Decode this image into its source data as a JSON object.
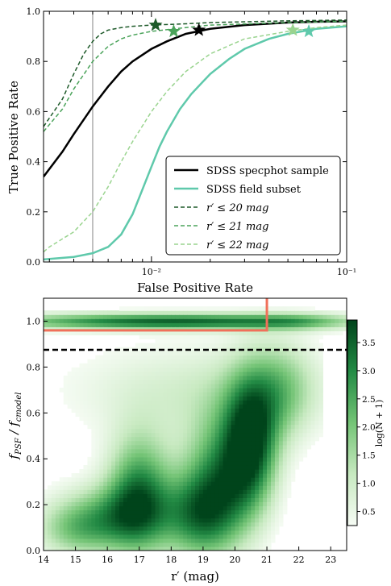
{
  "chart_data": [
    {
      "type": "line",
      "xlabel": "False Positive Rate",
      "ylabel": "True Positive Rate",
      "xscale": "log",
      "xlim": [
        0.0028,
        0.1
      ],
      "ylim": [
        0.0,
        1.0
      ],
      "x_tick_labels": [
        "10⁻²",
        "10⁻¹"
      ],
      "x_ticks": [
        0.01,
        0.1
      ],
      "y_tick_labels": [
        "0.0",
        "0.2",
        "0.4",
        "0.6",
        "0.8",
        "1.0"
      ],
      "y_ticks": [
        0.0,
        0.2,
        0.4,
        0.6,
        0.8,
        1.0
      ],
      "vline_x": 0.005,
      "legend_position": "lower-right",
      "series": [
        {
          "name": "SDSS specphot sample",
          "color": "#000000",
          "style": "solid",
          "x": [
            0.0028,
            0.0035,
            0.004,
            0.005,
            0.006,
            0.007,
            0.008,
            0.01,
            0.012,
            0.015,
            0.02,
            0.03,
            0.05,
            0.07,
            0.1
          ],
          "y": [
            0.34,
            0.44,
            0.51,
            0.62,
            0.7,
            0.76,
            0.8,
            0.85,
            0.88,
            0.91,
            0.93,
            0.945,
            0.955,
            0.958,
            0.96
          ],
          "marker": [
            0.0175,
            0.925
          ]
        },
        {
          "name": "SDSS field subset",
          "color": "#5fc9ab",
          "style": "solid",
          "x": [
            0.0028,
            0.003,
            0.004,
            0.005,
            0.006,
            0.007,
            0.008,
            0.009,
            0.01,
            0.011,
            0.012,
            0.014,
            0.016,
            0.02,
            0.025,
            0.03,
            0.04,
            0.05,
            0.07,
            0.1
          ],
          "y": [
            0.01,
            0.012,
            0.02,
            0.035,
            0.06,
            0.11,
            0.19,
            0.29,
            0.38,
            0.46,
            0.52,
            0.61,
            0.67,
            0.75,
            0.81,
            0.85,
            0.89,
            0.91,
            0.93,
            0.94
          ],
          "marker": [
            0.064,
            0.92
          ]
        },
        {
          "name": "r′ ≤ 20 mag",
          "color": "#1e5a2a",
          "style": "dashed",
          "x": [
            0.0028,
            0.0035,
            0.004,
            0.0045,
            0.005,
            0.0055,
            0.006,
            0.007,
            0.008,
            0.01,
            0.015,
            0.02,
            0.05,
            0.1
          ],
          "y": [
            0.54,
            0.65,
            0.75,
            0.83,
            0.88,
            0.91,
            0.925,
            0.935,
            0.94,
            0.945,
            0.95,
            0.955,
            0.962,
            0.965
          ],
          "marker": [
            0.0105,
            0.945
          ]
        },
        {
          "name": "r′ ≤ 21 mag",
          "color": "#4aa35a",
          "style": "dashed",
          "x": [
            0.0028,
            0.0035,
            0.004,
            0.005,
            0.006,
            0.007,
            0.008,
            0.01,
            0.015,
            0.02,
            0.05,
            0.1
          ],
          "y": [
            0.52,
            0.61,
            0.69,
            0.8,
            0.86,
            0.89,
            0.905,
            0.92,
            0.935,
            0.945,
            0.955,
            0.96
          ],
          "marker": [
            0.013,
            0.92
          ]
        },
        {
          "name": "r′ ≤ 22 mag",
          "color": "#9ad48f",
          "style": "dashed",
          "x": [
            0.0028,
            0.003,
            0.004,
            0.005,
            0.006,
            0.007,
            0.008,
            0.01,
            0.012,
            0.015,
            0.02,
            0.03,
            0.05,
            0.07,
            0.1
          ],
          "y": [
            0.04,
            0.06,
            0.12,
            0.2,
            0.3,
            0.4,
            0.48,
            0.6,
            0.68,
            0.76,
            0.83,
            0.89,
            0.92,
            0.935,
            0.945
          ],
          "marker": [
            0.053,
            0.925
          ]
        }
      ]
    },
    {
      "type": "heatmap",
      "xlabel": "r′ (mag)",
      "ylabel": "f_PSF / f_cmodel",
      "xlim": [
        14.0,
        23.5
      ],
      "ylim": [
        0.0,
        1.1
      ],
      "x_ticks": [
        14,
        15,
        16,
        17,
        18,
        19,
        20,
        21,
        22,
        23
      ],
      "x_tick_labels": [
        "14",
        "15",
        "16",
        "17",
        "18",
        "19",
        "20",
        "21",
        "22",
        "23"
      ],
      "y_ticks": [
        0.0,
        0.2,
        0.4,
        0.6,
        0.8,
        1.0
      ],
      "y_tick_labels": [
        "0.0",
        "0.2",
        "0.4",
        "0.6",
        "0.8",
        "1.0"
      ],
      "colorbar_label": "log(N + 1)",
      "colorbar_range": [
        0.25,
        3.9
      ],
      "colorbar_ticks": [
        0.5,
        1.0,
        1.5,
        2.0,
        2.5,
        3.0,
        3.5
      ],
      "colorbar_tick_labels": [
        "0.5",
        "1.0",
        "1.5",
        "2.0",
        "2.5",
        "3.0",
        "3.5"
      ],
      "dashed_hline_y": 0.875,
      "cut_line": {
        "color": "#f0705a",
        "points": [
          [
            14.0,
            0.96
          ],
          [
            21.0,
            0.96
          ],
          [
            21.0,
            1.1
          ]
        ]
      },
      "density_blobs": [
        {
          "x": 18.0,
          "y": 1.0,
          "sx": 4.0,
          "sy": 0.025,
          "amp": 3.4
        },
        {
          "x": 22.0,
          "y": 1.0,
          "sx": 0.9,
          "sy": 0.03,
          "amp": 0.6
        },
        {
          "x": 17.0,
          "y": 0.25,
          "sx": 0.7,
          "sy": 0.18,
          "amp": 2.9
        },
        {
          "x": 16.0,
          "y": 0.15,
          "sx": 1.2,
          "sy": 0.1,
          "amp": 2.0
        },
        {
          "x": 15.0,
          "y": 0.08,
          "sx": 0.9,
          "sy": 0.08,
          "amp": 1.2
        },
        {
          "x": 20.5,
          "y": 0.48,
          "sx": 0.6,
          "sy": 0.2,
          "amp": 3.6
        },
        {
          "x": 19.5,
          "y": 0.3,
          "sx": 0.8,
          "sy": 0.2,
          "amp": 2.6
        },
        {
          "x": 18.8,
          "y": 0.15,
          "sx": 0.8,
          "sy": 0.13,
          "amp": 2.2
        },
        {
          "x": 21.5,
          "y": 0.7,
          "sx": 0.7,
          "sy": 0.15,
          "amp": 1.4
        },
        {
          "x": 19.0,
          "y": 0.7,
          "sx": 3.0,
          "sy": 0.15,
          "amp": 0.9
        }
      ]
    }
  ]
}
